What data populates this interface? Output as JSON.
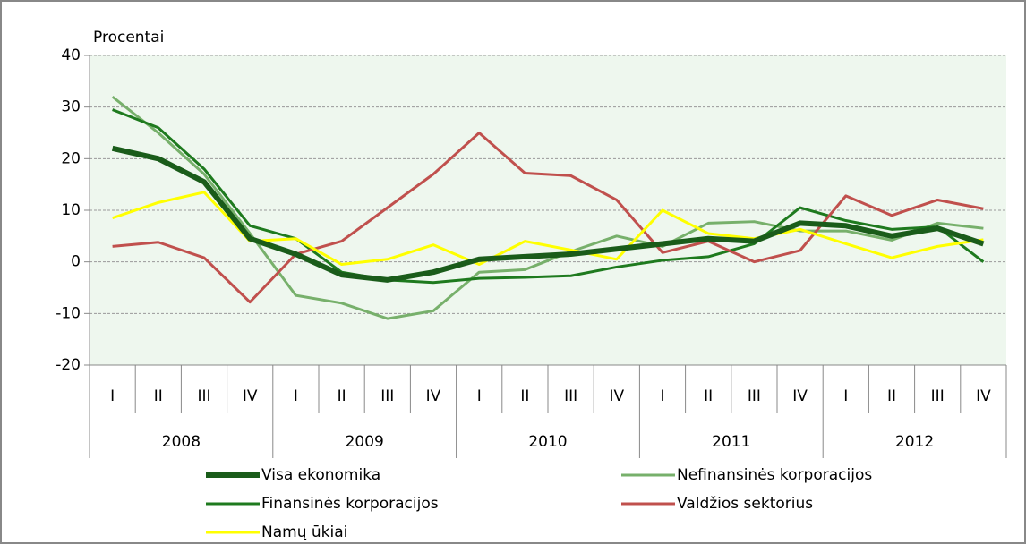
{
  "chart_data": {
    "type": "line",
    "ylabel": "Procentai",
    "categories": [
      "I",
      "II",
      "III",
      "IV",
      "I",
      "II",
      "III",
      "IV",
      "I",
      "II",
      "III",
      "IV",
      "I",
      "II",
      "III",
      "IV",
      "I",
      "II",
      "III",
      "IV"
    ],
    "groups": [
      "2008",
      "2009",
      "2010",
      "2011",
      "2012"
    ],
    "ylim": [
      -20,
      40
    ],
    "yticks": [
      -20,
      -10,
      0,
      10,
      20,
      30,
      40
    ],
    "grid": true,
    "legend": "bottom",
    "series": [
      {
        "name": "Visa ekonomika",
        "color": "#1a5c1a",
        "line_width": 6,
        "values": [
          22,
          20,
          15.5,
          4.5,
          1.5,
          -2.5,
          -3.5,
          -2,
          0.5,
          1,
          1.5,
          2.5,
          3.5,
          4.5,
          4,
          7.5,
          7,
          5,
          6.5,
          3.5
        ]
      },
      {
        "name": "Nefinansinės korporacijos",
        "color": "#77b06b",
        "line_width": 3,
        "values": [
          32,
          25,
          17,
          5.5,
          -6.5,
          -8,
          -11,
          -9.5,
          -2,
          -1.5,
          2,
          5,
          3,
          7.5,
          7.8,
          6,
          6,
          4.2,
          7.5,
          6.5
        ]
      },
      {
        "name": "Finansinės korporacijos",
        "color": "#1e7a1e",
        "line_width": 3,
        "values": [
          29.5,
          26,
          18,
          7,
          4.5,
          -2,
          -3.5,
          -4,
          -3.2,
          -3,
          -2.7,
          -1,
          0.3,
          1,
          3.5,
          10.5,
          8,
          6.3,
          6.8,
          0
        ]
      },
      {
        "name": "Valdžios sektorius",
        "color": "#c0504d",
        "line_width": 3,
        "values": [
          3,
          3.8,
          0.8,
          -7.8,
          1.5,
          4,
          10.5,
          17,
          25,
          17.2,
          16.7,
          12,
          1.8,
          4,
          0,
          2.2,
          12.8,
          9,
          12,
          10.3
        ]
      },
      {
        "name": "Namų ūkiai",
        "color": "#ffff00",
        "line_width": 3,
        "values": [
          8.5,
          11.5,
          13.5,
          4,
          4.5,
          -0.5,
          0.5,
          3.3,
          -0.5,
          4,
          2.3,
          0.5,
          10,
          5.5,
          4.5,
          6.3,
          3.5,
          0.8,
          3,
          4.3
        ]
      }
    ]
  }
}
